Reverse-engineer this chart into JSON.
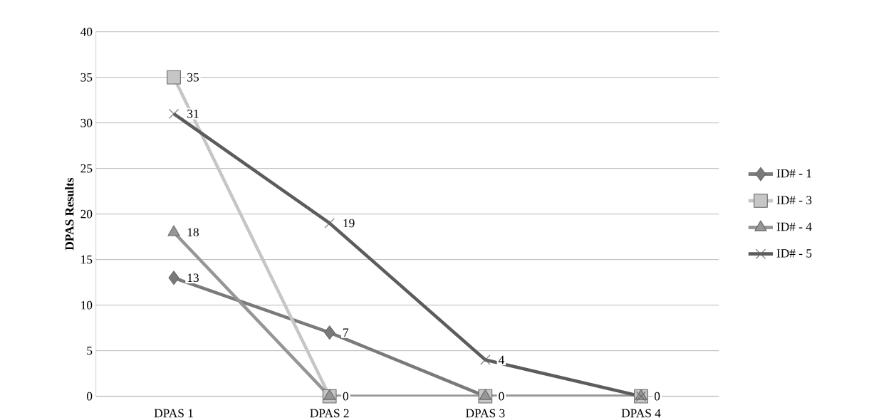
{
  "chart_data": {
    "type": "line",
    "ylabel": "DPAS Results",
    "categories": [
      "DPAS 1",
      "DPAS 2",
      "DPAS 3",
      "DPAS 4"
    ],
    "series": [
      {
        "name": "ID# - 1",
        "color": "#7a7a7a",
        "marker": "diamond",
        "values": [
          13,
          7,
          0,
          0
        ],
        "value_labels": [
          "13",
          "7",
          null,
          null
        ]
      },
      {
        "name": "ID# - 3",
        "color": "#c6c6c6",
        "marker": "square",
        "values": [
          35,
          0,
          0,
          0
        ],
        "value_labels": [
          "35",
          null,
          null,
          null
        ]
      },
      {
        "name": "ID# - 4",
        "color": "#969696",
        "marker": "triangle",
        "values": [
          18,
          0,
          0,
          0
        ],
        "value_labels": [
          "18",
          "0",
          "0",
          "0"
        ]
      },
      {
        "name": "ID# - 5",
        "color": "#5c5c5c",
        "marker": "cross",
        "values": [
          31,
          19,
          4,
          0
        ],
        "value_labels": [
          "31",
          "19",
          "4",
          null
        ]
      }
    ],
    "ylim": [
      0,
      40
    ],
    "yticks": [
      0,
      5,
      10,
      15,
      20,
      25,
      30,
      35,
      40
    ],
    "grid": "y",
    "legend": "right",
    "line_style": "solid"
  }
}
